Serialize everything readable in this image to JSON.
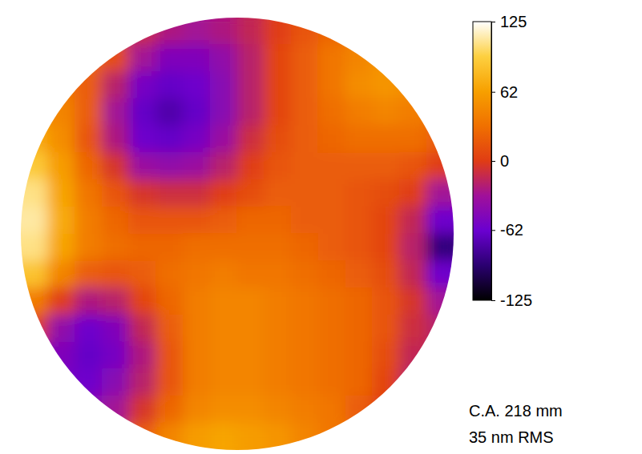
{
  "chart_data": {
    "type": "heatmap",
    "cells": [
      [
        null,
        null,
        null,
        null,
        -10,
        -25,
        -30,
        -25,
        -15,
        0,
        15,
        25,
        null,
        null,
        null,
        null
      ],
      [
        null,
        null,
        25,
        10,
        -30,
        -50,
        -50,
        -40,
        -20,
        5,
        20,
        35,
        45,
        55,
        null,
        null
      ],
      [
        null,
        35,
        20,
        -20,
        -55,
        -65,
        -60,
        -45,
        -20,
        5,
        20,
        35,
        50,
        55,
        50,
        null
      ],
      [
        null,
        45,
        20,
        -30,
        -65,
        -75,
        -65,
        -45,
        -20,
        5,
        20,
        30,
        40,
        45,
        40,
        null
      ],
      [
        70,
        50,
        15,
        -25,
        -60,
        -65,
        -55,
        -35,
        -10,
        10,
        20,
        25,
        30,
        30,
        30,
        20
      ],
      [
        90,
        60,
        25,
        -5,
        -35,
        -40,
        -35,
        -20,
        0,
        15,
        20,
        20,
        20,
        20,
        15,
        0
      ],
      [
        105,
        65,
        35,
        15,
        -5,
        -10,
        -10,
        0,
        10,
        20,
        20,
        20,
        15,
        10,
        0,
        -30
      ],
      [
        110,
        70,
        40,
        25,
        15,
        15,
        15,
        20,
        25,
        25,
        20,
        20,
        15,
        5,
        -15,
        -60
      ],
      [
        105,
        65,
        40,
        30,
        25,
        25,
        30,
        30,
        30,
        30,
        25,
        20,
        15,
        5,
        -20,
        -90
      ],
      [
        85,
        45,
        20,
        15,
        20,
        30,
        35,
        40,
        35,
        35,
        30,
        25,
        20,
        10,
        -15,
        -60
      ],
      [
        40,
        0,
        -25,
        -20,
        5,
        25,
        40,
        45,
        45,
        40,
        35,
        30,
        25,
        15,
        -5,
        -30
      ],
      [
        0,
        -40,
        -60,
        -50,
        -15,
        20,
        40,
        45,
        45,
        40,
        35,
        30,
        25,
        15,
        -10,
        -20
      ],
      [
        null,
        -50,
        -65,
        -55,
        -25,
        15,
        40,
        45,
        45,
        40,
        35,
        30,
        25,
        10,
        -15,
        null
      ],
      [
        null,
        -55,
        -60,
        -45,
        -20,
        15,
        40,
        45,
        45,
        40,
        35,
        30,
        25,
        5,
        -20,
        null
      ],
      [
        null,
        null,
        -45,
        -30,
        -5,
        25,
        45,
        50,
        50,
        45,
        40,
        35,
        20,
        0,
        null,
        null
      ],
      [
        null,
        null,
        null,
        null,
        20,
        45,
        60,
        65,
        60,
        55,
        45,
        35,
        null,
        null,
        null,
        null
      ]
    ],
    "colorbar": {
      "range": [
        -125,
        125
      ],
      "ticks": [
        125,
        62,
        0,
        -62,
        -125
      ]
    },
    "annotations": [
      "C.A. 218 mm",
      "35 nm RMS"
    ]
  }
}
